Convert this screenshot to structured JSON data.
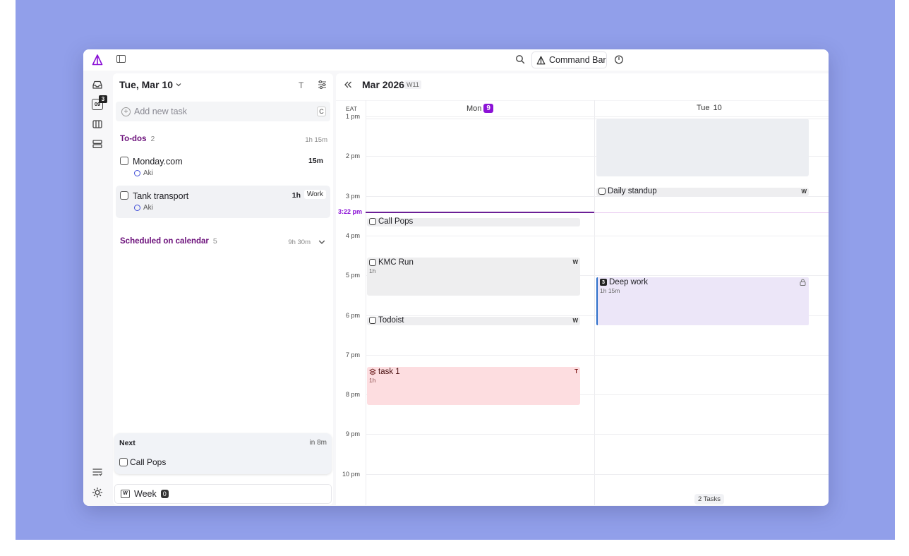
{
  "topbar": {
    "command_bar_label": "Command Bar"
  },
  "rail": {
    "today_icon_label": "09",
    "today_badge": "3"
  },
  "tasks": {
    "date_title": "Tue, Mar 10",
    "text_toggle": "T",
    "add_task_placeholder": "Add new task",
    "add_task_shortcut": "C",
    "todos": {
      "title": "To-dos",
      "count": "2",
      "duration": "1h 15m",
      "items": [
        {
          "title": "Monday.com",
          "user": "Aki",
          "duration": "15m",
          "tag": ""
        },
        {
          "title": "Tank transport",
          "user": "Aki",
          "duration": "1h",
          "tag": "Work"
        }
      ]
    },
    "scheduled": {
      "title": "Scheduled on calendar",
      "count": "5",
      "duration": "9h 30m"
    },
    "next": {
      "label": "Next",
      "time": "in 8m",
      "title": "Call Pops"
    },
    "week_button": {
      "icon_letter": "W",
      "label": "Week",
      "count": "0"
    }
  },
  "calendar": {
    "month": "Mar 2026",
    "week": "W11",
    "timezone": "EAT",
    "days": [
      {
        "name": "Mon",
        "num": "9",
        "today": true
      },
      {
        "name": "Tue",
        "num": "10",
        "today": false
      }
    ],
    "hours": [
      "1 pm",
      "2 pm",
      "3 pm",
      "4 pm",
      "5 pm",
      "6 pm",
      "7 pm",
      "8 pm",
      "9 pm",
      "10 pm"
    ],
    "now_label": "3:22 pm",
    "events": {
      "daily_standup": {
        "title": "Daily standup",
        "tag": "W"
      },
      "call_pops": {
        "title": "Call Pops"
      },
      "kmc_run": {
        "title": "KMC Run",
        "sub": "1h",
        "tag": "W"
      },
      "deep_work": {
        "title": "Deep work",
        "sub": "1h 15m",
        "badge": "3"
      },
      "todoist": {
        "title": "Todoist",
        "tag": "W"
      },
      "task1": {
        "title": "task 1",
        "sub": "1h",
        "tag": "T"
      }
    },
    "tasks_chip": "2 Tasks"
  },
  "colors": {
    "accent": "#8b12d6",
    "section": "#6b0f7a",
    "backdrop": "#919fea",
    "deep_work_bg": "#ece6f8",
    "task1_bg": "#fddde0"
  }
}
